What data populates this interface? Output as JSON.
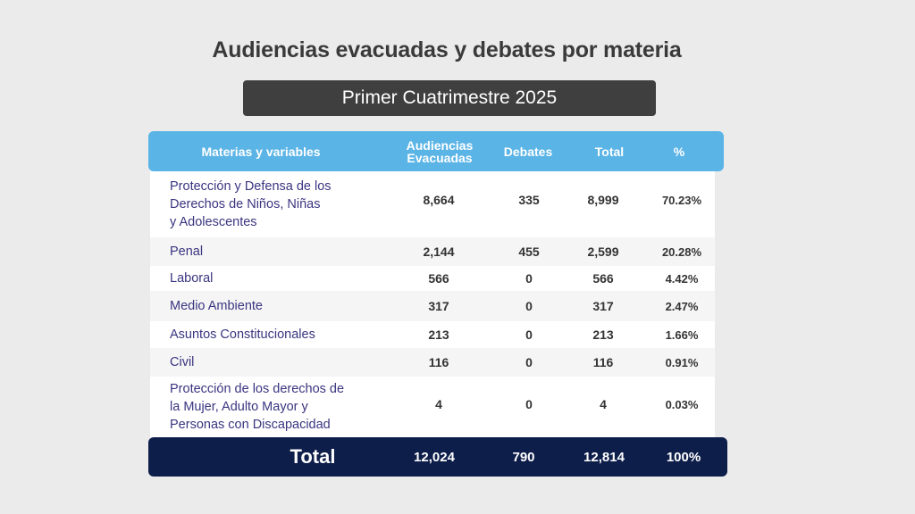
{
  "title": "Audiencias evacuadas y debates por materia",
  "subtitle": "Primer Cuatrimestre 2025",
  "columns": {
    "materia": "Materias y variables",
    "audiencias_l1": "Audiencias",
    "audiencias_l2": "Evacuadas",
    "debates": "Debates",
    "total": "Total",
    "pct": "%"
  },
  "rows": [
    {
      "l1": "Protección y Defensa de los",
      "l2": "Derechos de Niños, Niñas",
      "l3": "y Adolescentes",
      "audiencias": "8,664",
      "debates": "335",
      "total": "8,999",
      "pct": "70.23%"
    },
    {
      "l1": "Penal",
      "audiencias": "2,144",
      "debates": "455",
      "total": "2,599",
      "pct": "20.28%"
    },
    {
      "l1": "Laboral",
      "audiencias": "566",
      "debates": "0",
      "total": "566",
      "pct": "4.42%"
    },
    {
      "l1": "Medio Ambiente",
      "audiencias": "317",
      "debates": "0",
      "total": "317",
      "pct": "2.47%"
    },
    {
      "l1": "Asuntos Constitucionales",
      "audiencias": "213",
      "debates": "0",
      "total": "213",
      "pct": "1.66%"
    },
    {
      "l1": "Civil",
      "audiencias": "116",
      "debates": "0",
      "total": "116",
      "pct": "0.91%"
    },
    {
      "l1": "Protección de los derechos de",
      "l2": "la Mujer, Adulto Mayor y",
      "l3": "Personas con Discapacidad",
      "audiencias": "4",
      "debates": "0",
      "total": "4",
      "pct": "0.03%"
    }
  ],
  "totals": {
    "label": "Total",
    "audiencias": "12,024",
    "debates": "790",
    "total": "12,814",
    "pct": "100%"
  }
}
